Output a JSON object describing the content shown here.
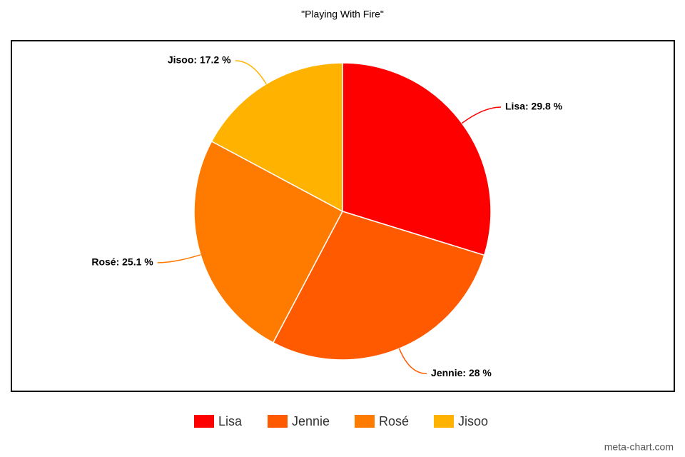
{
  "chart_data": {
    "type": "pie",
    "title": "\"Playing With Fire\"",
    "categories": [
      "Lisa",
      "Jennie",
      "Rosé",
      "Jisoo"
    ],
    "values": [
      29.8,
      28,
      25.1,
      17.2
    ],
    "value_labels": [
      "Lisa: 29.8 %",
      "Jennie: 28 %",
      "Rosé: 25.1 %",
      "Jisoo: 17.2 %"
    ],
    "colors": [
      "#fe0000",
      "#ff5a00",
      "#ff7b00",
      "#ffb300"
    ],
    "credit": "meta-chart.com"
  }
}
